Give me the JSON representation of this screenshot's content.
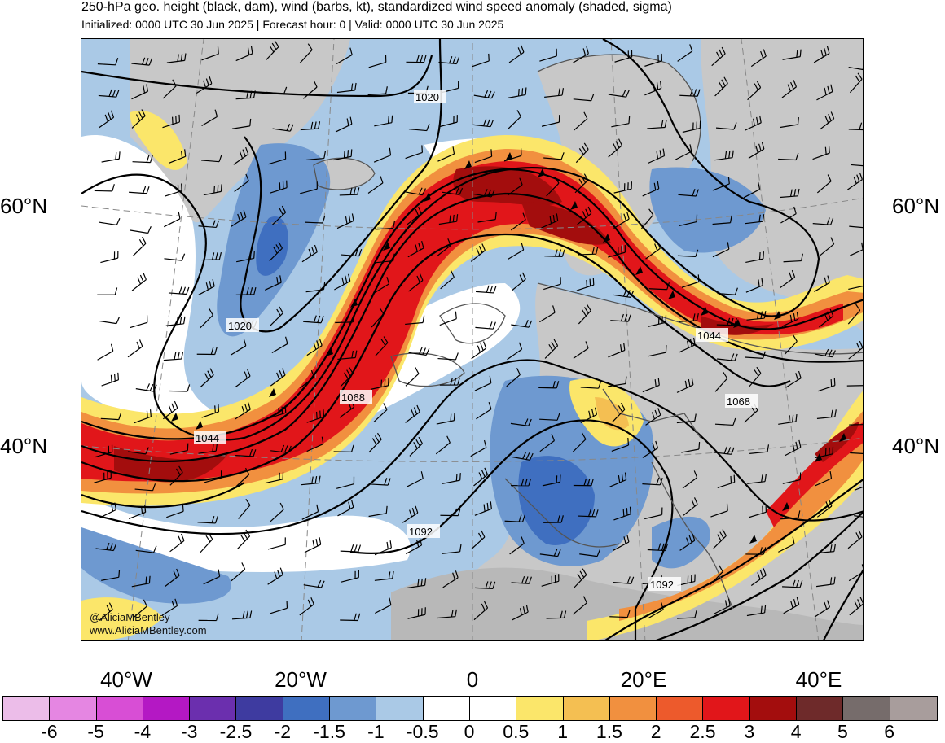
{
  "title": "250-hPa geo. height (black, dam), wind (barbs, kt), standardized wind speed anomaly (shaded, sigma)",
  "subtitle": "Initialized: 0000 UTC 30 Jun 2025 | Forecast hour: 0 | Valid: 0000 UTC 30 Jun 2025",
  "lat_labels": {
    "left": [
      "60°N",
      "40°N"
    ],
    "right": [
      "60°N",
      "40°N"
    ]
  },
  "lon_labels": [
    "40°W",
    "20°W",
    "0",
    "20°E",
    "40°E"
  ],
  "contour_labels": [
    "1020",
    "1020",
    "1044",
    "1044",
    "1068",
    "1068",
    "1092",
    "1092"
  ],
  "credits": {
    "handle": "@AliciaMBentley",
    "website": "www.AliciaMBentley.com"
  },
  "colorbar": {
    "ticks": [
      "-6",
      "-5",
      "-4",
      "-3",
      "-2.5",
      "-2",
      "-1.5",
      "-1",
      "-0.5",
      "0",
      "0.5",
      "1",
      "1.5",
      "2",
      "2.5",
      "3",
      "4",
      "5",
      "6"
    ],
    "colors": [
      "#ecbde9",
      "#e586e2",
      "#d84ed5",
      "#b418c4",
      "#6b2fae",
      "#3e3ba0",
      "#3f6fc0",
      "#6e99d0",
      "#aac9e6",
      "#ffffff",
      "#ffffff",
      "#fbe66a",
      "#f4bf52",
      "#f1903f",
      "#ed5a2c",
      "#e1161a",
      "#a30d0d",
      "#6e2a2a",
      "#766c6b",
      "#a89d9c"
    ]
  },
  "map_colors": {
    "ocean_base": "#aac9e6",
    "land": "#c8c8c8",
    "negative_moderate": "#6e99d0",
    "negative_strong": "#3f6fc0",
    "jet_weak": "#fbe66a",
    "jet_moderate": "#f1903f",
    "jet_strong": "#e1161a",
    "jet_core": "#a30d0d",
    "contour": "#000000",
    "coastline": "#555555"
  }
}
